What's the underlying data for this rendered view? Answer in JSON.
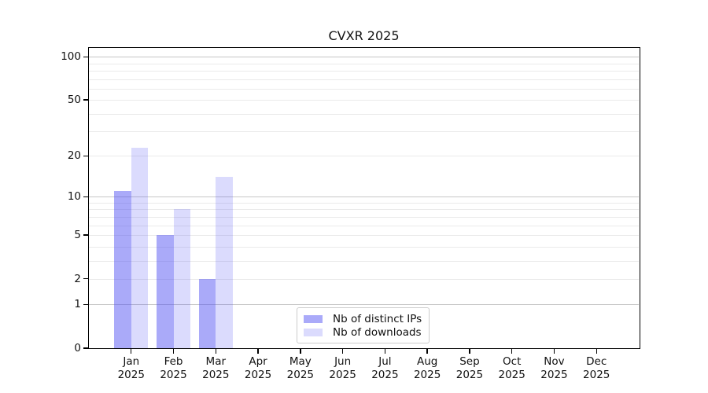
{
  "chart_data": {
    "type": "bar",
    "title": "CVXR 2025",
    "categories": [
      "Jan",
      "Feb",
      "Mar",
      "Apr",
      "May",
      "Jun",
      "Jul",
      "Aug",
      "Sep",
      "Oct",
      "Nov",
      "Dec"
    ],
    "year_label": "2025",
    "series": [
      {
        "name": "Nb of distinct IPs",
        "fill": "rgba(77,77,243,0.48)",
        "color_hex": "#aaaaf8",
        "values": [
          11,
          5,
          2,
          0,
          0,
          0,
          0,
          0,
          0,
          0,
          0,
          0
        ]
      },
      {
        "name": "Nb of downloads",
        "fill": "rgba(77,77,243,0.20)",
        "color_hex": "#dcdcfa",
        "values": [
          23,
          8,
          14,
          0,
          0,
          0,
          0,
          0,
          0,
          0,
          0,
          0
        ]
      }
    ],
    "y_scale": "log1p",
    "y_tick_values": [
      0,
      1,
      2,
      5,
      10,
      20,
      50,
      100
    ],
    "y_major_gridlines": [
      1,
      10,
      100
    ],
    "y_minor_gridlines": [
      2,
      3,
      4,
      5,
      6,
      7,
      8,
      9,
      20,
      30,
      40,
      50,
      60,
      70,
      80,
      90
    ],
    "ylim": [
      0,
      115
    ],
    "xlabel": "",
    "ylabel": "",
    "grid": true,
    "legend": {
      "position": "lower-center",
      "entries": [
        "Nb of distinct IPs",
        "Nb of downloads"
      ]
    }
  },
  "colors": {
    "major_grid": "#c6c6c6",
    "minor_grid": "#eaeaea",
    "axis": "#000000",
    "text": "#111111",
    "background": "#ffffff",
    "legend_border": "#cccccc"
  }
}
